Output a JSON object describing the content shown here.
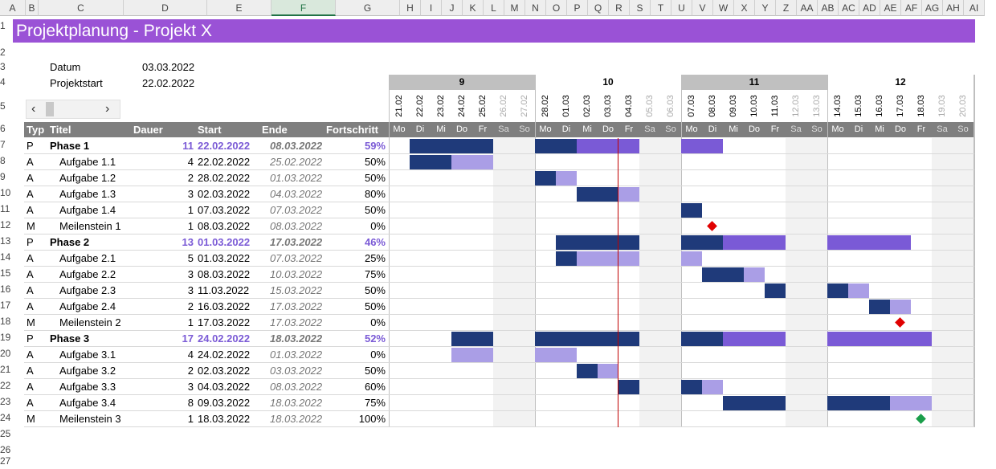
{
  "sheet": {
    "columns": [
      "A",
      "B",
      "C",
      "D",
      "E",
      "F",
      "G",
      "H",
      "I",
      "J",
      "K",
      "L",
      "M",
      "N",
      "O",
      "P",
      "Q",
      "R",
      "S",
      "T",
      "U",
      "V",
      "W",
      "X",
      "Y",
      "Z",
      "AA",
      "AB",
      "AC",
      "AD",
      "AE",
      "AF",
      "AG",
      "AH",
      "AI"
    ],
    "selected_column": "F",
    "row_numbers": [
      "1",
      "2",
      "3",
      "4",
      "5",
      "6",
      "7",
      "8",
      "9",
      "10",
      "11",
      "12",
      "13",
      "14",
      "15",
      "16",
      "17",
      "18",
      "19",
      "20",
      "21",
      "22",
      "23",
      "24",
      "25",
      "26",
      "27"
    ]
  },
  "title": "Projektplanung - Projekt X",
  "info": {
    "datum_label": "Datum",
    "datum_value": "03.03.2022",
    "start_label": "Projektstart",
    "start_value": "22.02.2022"
  },
  "scroll": {
    "left_icon": "chevron-left-icon",
    "right_icon": "chevron-right-icon",
    "left_glyph": "‹",
    "right_glyph": "›"
  },
  "headers": {
    "typ": "Typ",
    "titel": "Titel",
    "dauer": "Dauer",
    "start": "Start",
    "ende": "Ende",
    "fortschritt": "Fortschritt"
  },
  "weeks": [
    "9",
    "10",
    "11",
    "12"
  ],
  "dates": [
    "21.02",
    "22.02",
    "23.02",
    "24.02",
    "25.02",
    "26.02",
    "27.02",
    "28.02",
    "01.03",
    "02.03",
    "03.03",
    "04.03",
    "05.03",
    "06.03",
    "07.03",
    "08.03",
    "09.03",
    "10.03",
    "11.03",
    "12.03",
    "13.03",
    "14.03",
    "15.03",
    "16.03",
    "17.03",
    "18.03",
    "19.03",
    "20.03"
  ],
  "weekdays": [
    "Mo",
    "Di",
    "Mi",
    "Do",
    "Fr",
    "Sa",
    "So"
  ],
  "today_index": 10,
  "colors": {
    "title_bg": "#9a52d6",
    "done": "#1f3a7a",
    "todo": "#aa9ee6",
    "phase_todo": "#7a5ad6",
    "today_line": "#c00000",
    "milestone_red": "#e00000",
    "milestone_green": "#1a9e4a"
  },
  "tasks": [
    {
      "typ": "P",
      "titel": "Phase 1",
      "dauer": "11",
      "start": "22.02.2022",
      "ende": "08.03.2022",
      "fortschritt": "59%",
      "start_idx": 1,
      "days": 11,
      "progress": 0.59
    },
    {
      "typ": "A",
      "titel": "Aufgabe 1.1",
      "dauer": "4",
      "start": "22.02.2022",
      "ende": "25.02.2022",
      "fortschritt": "50%",
      "start_idx": 1,
      "days": 4,
      "progress": 0.5
    },
    {
      "typ": "A",
      "titel": "Aufgabe 1.2",
      "dauer": "2",
      "start": "28.02.2022",
      "ende": "01.03.2022",
      "fortschritt": "50%",
      "start_idx": 7,
      "days": 2,
      "progress": 0.5
    },
    {
      "typ": "A",
      "titel": "Aufgabe 1.3",
      "dauer": "3",
      "start": "02.03.2022",
      "ende": "04.03.2022",
      "fortschritt": "80%",
      "start_idx": 9,
      "days": 3,
      "progress": 0.8
    },
    {
      "typ": "A",
      "titel": "Aufgabe 1.4",
      "dauer": "1",
      "start": "07.03.2022",
      "ende": "07.03.2022",
      "fortschritt": "50%",
      "start_idx": 14,
      "days": 1,
      "progress": 0.5
    },
    {
      "typ": "M",
      "titel": "Meilenstein 1",
      "dauer": "1",
      "start": "08.03.2022",
      "ende": "08.03.2022",
      "fortschritt": "0%",
      "start_idx": 15,
      "days": 1,
      "progress": 0
    },
    {
      "typ": "P",
      "titel": "Phase 2",
      "dauer": "13",
      "start": "01.03.2022",
      "ende": "17.03.2022",
      "fortschritt": "46%",
      "start_idx": 8,
      "days": 13,
      "progress": 0.46
    },
    {
      "typ": "A",
      "titel": "Aufgabe 2.1",
      "dauer": "5",
      "start": "01.03.2022",
      "ende": "07.03.2022",
      "fortschritt": "25%",
      "start_idx": 8,
      "days": 5,
      "progress": 0.25
    },
    {
      "typ": "A",
      "titel": "Aufgabe 2.2",
      "dauer": "3",
      "start": "08.03.2022",
      "ende": "10.03.2022",
      "fortschritt": "75%",
      "start_idx": 15,
      "days": 3,
      "progress": 0.75
    },
    {
      "typ": "A",
      "titel": "Aufgabe 2.3",
      "dauer": "3",
      "start": "11.03.2022",
      "ende": "15.03.2022",
      "fortschritt": "50%",
      "start_idx": 18,
      "days": 3,
      "progress": 0.5
    },
    {
      "typ": "A",
      "titel": "Aufgabe 2.4",
      "dauer": "2",
      "start": "16.03.2022",
      "ende": "17.03.2022",
      "fortschritt": "50%",
      "start_idx": 23,
      "days": 2,
      "progress": 0.5
    },
    {
      "typ": "M",
      "titel": "Meilenstein 2",
      "dauer": "1",
      "start": "17.03.2022",
      "ende": "17.03.2022",
      "fortschritt": "0%",
      "start_idx": 24,
      "days": 1,
      "progress": 0
    },
    {
      "typ": "P",
      "titel": "Phase 3",
      "dauer": "17",
      "start": "24.02.2022",
      "ende": "18.03.2022",
      "fortschritt": "52%",
      "start_idx": 3,
      "days": 17,
      "progress": 0.52
    },
    {
      "typ": "A",
      "titel": "Aufgabe 3.1",
      "dauer": "4",
      "start": "24.02.2022",
      "ende": "01.03.2022",
      "fortschritt": "0%",
      "start_idx": 3,
      "days": 4,
      "progress": 0
    },
    {
      "typ": "A",
      "titel": "Aufgabe 3.2",
      "dauer": "2",
      "start": "02.03.2022",
      "ende": "03.03.2022",
      "fortschritt": "50%",
      "start_idx": 9,
      "days": 2,
      "progress": 0.5
    },
    {
      "typ": "A",
      "titel": "Aufgabe 3.3",
      "dauer": "3",
      "start": "04.03.2022",
      "ende": "08.03.2022",
      "fortschritt": "60%",
      "start_idx": 11,
      "days": 3,
      "progress": 0.6
    },
    {
      "typ": "A",
      "titel": "Aufgabe 3.4",
      "dauer": "8",
      "start": "09.03.2022",
      "ende": "18.03.2022",
      "fortschritt": "75%",
      "start_idx": 16,
      "days": 8,
      "progress": 0.75
    },
    {
      "typ": "M",
      "titel": "Meilenstein 3",
      "dauer": "1",
      "start": "18.03.2022",
      "ende": "18.03.2022",
      "fortschritt": "100%",
      "start_idx": 25,
      "days": 1,
      "progress": 1
    }
  ]
}
